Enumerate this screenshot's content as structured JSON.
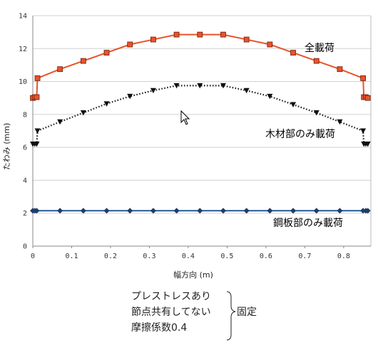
{
  "chart_data": {
    "type": "line",
    "xlabel": "幅方向 (m)",
    "ylabel": "たわみ (mm)",
    "xlim": [
      0,
      0.87
    ],
    "ylim": [
      0,
      14
    ],
    "x_ticks": [
      "0",
      "0.1",
      "0.2",
      "0.3",
      "0.4",
      "0.5",
      "0.6",
      "0.7",
      "0.8"
    ],
    "y_ticks": [
      "0",
      "2",
      "4",
      "6",
      "8",
      "10",
      "12",
      "14"
    ],
    "grid": "horizontal",
    "series": [
      {
        "name": "全載荷",
        "color": "#e8532b",
        "marker": "square",
        "line": "solid",
        "points": [
          [
            0,
            9.0
          ],
          [
            0.005,
            9.05
          ],
          [
            0.01,
            9.05
          ],
          [
            0.012,
            10.2
          ],
          [
            0.07,
            10.75
          ],
          [
            0.13,
            11.25
          ],
          [
            0.19,
            11.75
          ],
          [
            0.25,
            12.25
          ],
          [
            0.31,
            12.55
          ],
          [
            0.37,
            12.85
          ],
          [
            0.43,
            12.85
          ],
          [
            0.49,
            12.85
          ],
          [
            0.55,
            12.55
          ],
          [
            0.61,
            12.25
          ],
          [
            0.67,
            11.75
          ],
          [
            0.73,
            11.25
          ],
          [
            0.79,
            10.75
          ],
          [
            0.85,
            10.2
          ],
          [
            0.852,
            9.05
          ],
          [
            0.857,
            9.05
          ],
          [
            0.862,
            9.0
          ]
        ]
      },
      {
        "name": "木材部のみ載荷",
        "color": "#111111",
        "marker": "triangle-down",
        "line": "dotted",
        "points": [
          [
            0,
            6.2
          ],
          [
            0.005,
            6.2
          ],
          [
            0.01,
            6.2
          ],
          [
            0.012,
            7.0
          ],
          [
            0.07,
            7.55
          ],
          [
            0.13,
            8.1
          ],
          [
            0.19,
            8.65
          ],
          [
            0.25,
            9.1
          ],
          [
            0.31,
            9.45
          ],
          [
            0.37,
            9.75
          ],
          [
            0.43,
            9.75
          ],
          [
            0.49,
            9.75
          ],
          [
            0.55,
            9.45
          ],
          [
            0.61,
            9.1
          ],
          [
            0.67,
            8.6
          ],
          [
            0.73,
            8.1
          ],
          [
            0.79,
            7.55
          ],
          [
            0.85,
            7.0
          ],
          [
            0.852,
            6.2
          ],
          [
            0.857,
            6.2
          ],
          [
            0.862,
            6.2
          ]
        ]
      },
      {
        "name": "鋼板部のみ載荷",
        "color": "#1f5a99",
        "marker": "diamond",
        "line": "solid",
        "points": [
          [
            0,
            2.15
          ],
          [
            0.005,
            2.15
          ],
          [
            0.01,
            2.15
          ],
          [
            0.07,
            2.15
          ],
          [
            0.13,
            2.15
          ],
          [
            0.19,
            2.15
          ],
          [
            0.25,
            2.15
          ],
          [
            0.31,
            2.15
          ],
          [
            0.37,
            2.15
          ],
          [
            0.43,
            2.15
          ],
          [
            0.49,
            2.15
          ],
          [
            0.55,
            2.15
          ],
          [
            0.61,
            2.15
          ],
          [
            0.67,
            2.15
          ],
          [
            0.73,
            2.15
          ],
          [
            0.79,
            2.15
          ],
          [
            0.85,
            2.15
          ],
          [
            0.857,
            2.15
          ],
          [
            0.862,
            2.15
          ]
        ]
      }
    ]
  },
  "notes": {
    "lines": [
      "プレストレスあり",
      "節点共有してない",
      "摩擦係数0.4"
    ],
    "bracket_label": "固定"
  }
}
